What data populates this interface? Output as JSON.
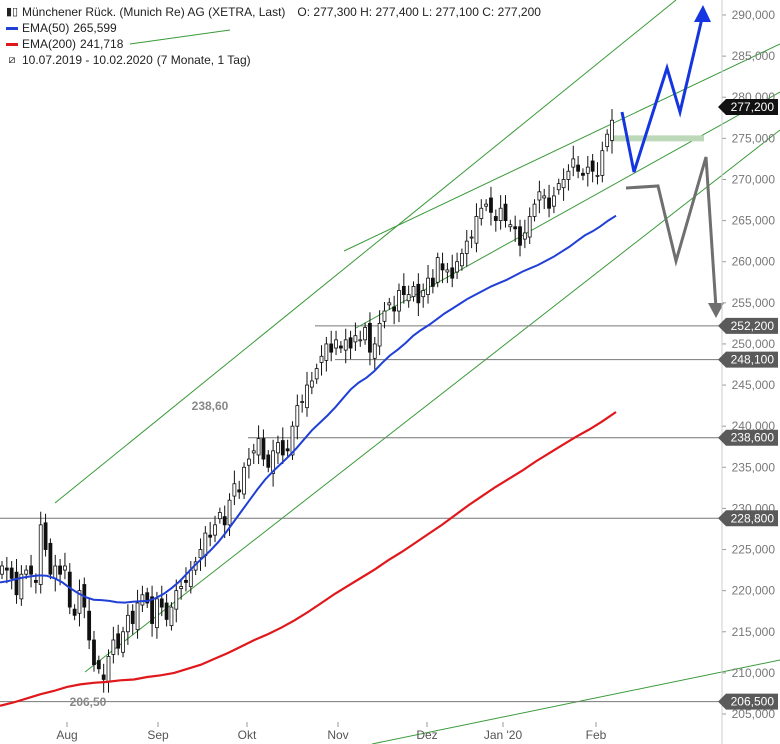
{
  "header": {
    "title": "Münchener Rück. (Munich Re) AG (XETRA, Last)",
    "ohlc": "O: 277,300   H: 277,400   L: 277,100   C: 277,200",
    "ema50_label": "EMA(50)",
    "ema50_value": "265,599",
    "ema200_label": "EMA(200)",
    "ema200_value": "241,718",
    "range": "10.07.2019 - 10.02.2020",
    "period": "(7 Monate, 1 Tag)",
    "colors": {
      "ema50": "#1f3fd6",
      "ema200": "#e0171b",
      "channel": "#3a9a3a",
      "projection_up": "#1535e0",
      "projection_down": "#6f6f6f"
    }
  },
  "chart_data": {
    "type": "candlestick",
    "ylim": [
      205000,
      292000
    ],
    "y_ticks": [
      "290,000",
      "285,000",
      "280,000",
      "275,000",
      "270,000",
      "265,000",
      "260,000",
      "255,000",
      "250,000",
      "245,000",
      "240,000",
      "235,000",
      "230,000",
      "225,000",
      "220,000",
      "215,000",
      "210,000",
      "205,000"
    ],
    "x_ticks": [
      "Aug",
      "Sep",
      "Okt",
      "Nov",
      "Dez",
      "Jan '20",
      "Feb"
    ],
    "close": [
      223000,
      222500,
      221500,
      219500,
      222000,
      222500,
      222000,
      221000,
      228000,
      225000,
      222000,
      223000,
      222000,
      223000,
      218000,
      217000,
      220000,
      218000,
      214000,
      211000,
      210500,
      209200,
      212000,
      214000,
      213000,
      215000,
      217000,
      216000,
      218500,
      219500,
      218500,
      216000,
      219000,
      218000,
      216500,
      218000,
      220000,
      220500,
      221000,
      222500,
      223500,
      225000,
      227000,
      226500,
      228000,
      229500,
      228000,
      231000,
      233000,
      232000,
      235000,
      236000,
      237000,
      238500,
      236000,
      235000,
      237000,
      238000,
      236500,
      237000,
      240000,
      242500,
      243000,
      245000,
      245500,
      247000,
      248500,
      250000,
      249000,
      250500,
      249500,
      250500,
      249500,
      251000,
      250500,
      252000,
      249000,
      250000,
      252500,
      254000,
      255000,
      254000,
      256500,
      256000,
      256000,
      257000,
      255000,
      256500,
      258000,
      257000,
      260500,
      259000,
      259000,
      258000,
      260000,
      261000,
      262500,
      263000,
      265500,
      266500,
      267000,
      266000,
      265000,
      266500,
      265000,
      264500,
      264000,
      262000,
      263500,
      265500,
      267000,
      268500,
      268000,
      266500,
      268000,
      269500,
      270000,
      271000,
      272500,
      271000,
      270500,
      271500,
      271000,
      270500,
      273500,
      275500,
      277200
    ],
    "ema50": [
      221000,
      221150,
      221400,
      221600,
      221750,
      221850,
      221800,
      221500,
      221000,
      220300,
      219700,
      219200,
      218900,
      218850,
      218750,
      218600,
      218550,
      218650,
      218700,
      218750,
      219100,
      219600,
      220300,
      221100,
      222100,
      223100,
      224000,
      224900,
      225900,
      227100,
      228400,
      229700,
      231000,
      232300,
      233500,
      234500,
      235400,
      236300,
      237300,
      238400,
      239500,
      240400,
      241300,
      242300,
      243400,
      244500,
      245300,
      245900,
      246700,
      247700,
      248600,
      249300,
      250100,
      251000,
      251700,
      252300,
      253000,
      253700,
      254300,
      254900,
      255500,
      256000,
      256500,
      257000,
      257400,
      257800,
      258300,
      258800,
      259200,
      259600,
      260100,
      260600,
      261200,
      261800,
      262500,
      263200,
      263700,
      264300,
      265000,
      265599
    ],
    "ema200": [
      206000,
      206400,
      206900,
      207400,
      207800,
      208300,
      208600,
      208800,
      208900,
      209100,
      209200,
      209500,
      209700,
      210000,
      210500,
      211000,
      211700,
      212400,
      213200,
      214000,
      214700,
      215500,
      216400,
      217400,
      218500,
      219600,
      220600,
      221600,
      222600,
      223700,
      224700,
      225800,
      226900,
      228000,
      229200,
      230400,
      231500,
      232600,
      233600,
      234600,
      235700,
      236700,
      237700,
      238700,
      239600,
      240600,
      241718
    ],
    "horizontal_levels": [
      "252,200",
      "248,100",
      "238,600",
      "228,800",
      "206,500"
    ],
    "annotations": [
      "238,60",
      "206,50"
    ],
    "last_price": "277,200"
  }
}
